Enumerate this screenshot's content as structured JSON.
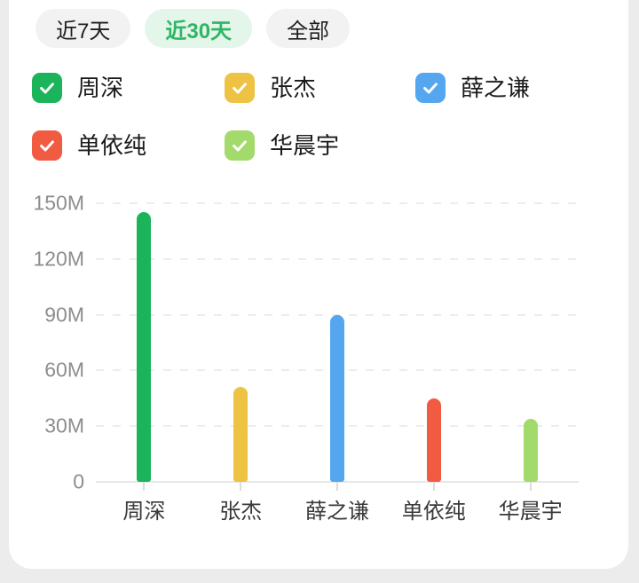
{
  "page": {
    "background": "#ececec",
    "card_background": "#ffffff"
  },
  "tabs": {
    "items": [
      {
        "label": "近7天",
        "active": false
      },
      {
        "label": "近30天",
        "active": true
      },
      {
        "label": "全部",
        "active": false
      }
    ],
    "active_bg": "#e4f5ea",
    "active_color": "#2db765",
    "inactive_bg": "#f2f2f3",
    "inactive_color": "#1f1f1f"
  },
  "legend": {
    "items": [
      {
        "label": "周深",
        "color": "#1cb45b",
        "checked": true
      },
      {
        "label": "张杰",
        "color": "#eec343",
        "checked": true
      },
      {
        "label": "薛之谦",
        "color": "#54a7ef",
        "checked": true
      },
      {
        "label": "单依纯",
        "color": "#f15b42",
        "checked": true
      },
      {
        "label": "华晨宇",
        "color": "#a2da6c",
        "checked": true
      }
    ]
  },
  "chart_data": {
    "type": "bar",
    "categories": [
      "周深",
      "张杰",
      "薛之谦",
      "单依纯",
      "华晨宇"
    ],
    "values": [
      145,
      51,
      90,
      45,
      34
    ],
    "unit": "M",
    "series_colors": [
      "#1cb45b",
      "#eec343",
      "#54a7ef",
      "#f15b42",
      "#a2da6c"
    ],
    "yticks": [
      0,
      30,
      60,
      90,
      120,
      150
    ],
    "ytick_labels": [
      "0",
      "30M",
      "60M",
      "90M",
      "120M",
      "150M"
    ],
    "ylim": [
      0,
      150
    ],
    "title": "",
    "xlabel": "",
    "ylabel": "",
    "grid": "horizontal-dashed",
    "legend_position": "top",
    "axis_line_color": "#e7e7e7",
    "gridline_color": "#ededed"
  }
}
